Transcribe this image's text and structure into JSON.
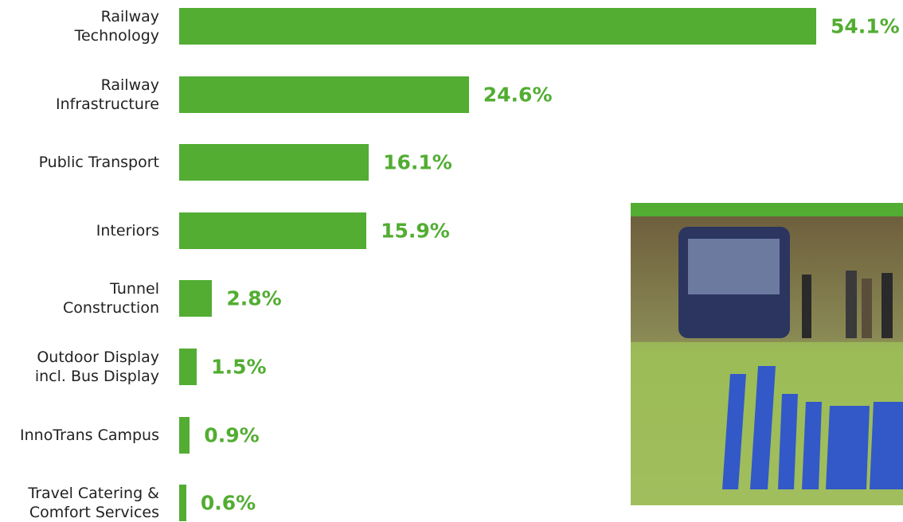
{
  "chart_data": {
    "type": "bar",
    "orientation": "horizontal",
    "categories": [
      "Railway\nTechnology",
      "Railway\nInfrastructure",
      "Public Transport",
      "Interiors",
      "Tunnel\nConstruction",
      "Outdoor Display\nincl. Bus Display",
      "InnoTrans Campus",
      "Travel Catering &\nComfort Services"
    ],
    "values": [
      54.1,
      24.6,
      16.1,
      15.9,
      2.8,
      1.5,
      0.9,
      0.6
    ],
    "value_labels": [
      "54.1%",
      "24.6%",
      "16.1%",
      "15.9%",
      "2.8%",
      "1.5%",
      "0.9%",
      "0.6%"
    ],
    "color": "#52ad32"
  }
}
